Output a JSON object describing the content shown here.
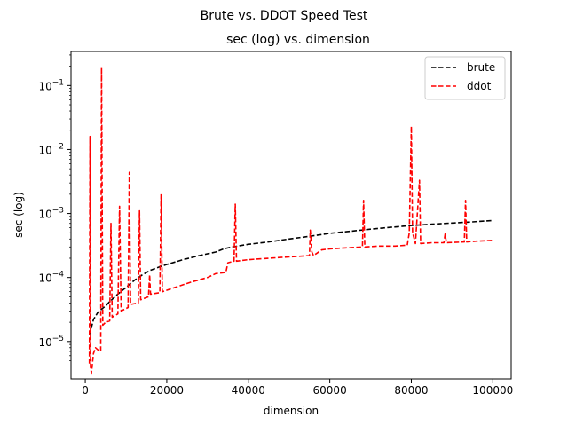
{
  "chart_data": {
    "type": "line",
    "suptitle": "Brute vs. DDOT Speed Test",
    "title": "sec (log) vs. dimension",
    "xlabel": "dimension",
    "ylabel": "sec (log)",
    "xlim": [
      -3500,
      104500
    ],
    "ylim": [
      2.6e-06,
      0.34
    ],
    "yscale": "log",
    "grid": false,
    "legend_position": "top-right",
    "x_ticks": [
      {
        "value": 0,
        "label": "0"
      },
      {
        "value": 20000,
        "label": "20000"
      },
      {
        "value": 40000,
        "label": "40000"
      },
      {
        "value": 60000,
        "label": "60000"
      },
      {
        "value": 80000,
        "label": "80000"
      },
      {
        "value": 100000,
        "label": "100000"
      }
    ],
    "y_ticks": [
      {
        "value": 1e-05,
        "mant": "10",
        "exp": "−5"
      },
      {
        "value": 0.0001,
        "mant": "10",
        "exp": "−4"
      },
      {
        "value": 0.001,
        "mant": "10",
        "exp": "−3"
      },
      {
        "value": 0.01,
        "mant": "10",
        "exp": "−2"
      },
      {
        "value": 0.1,
        "mant": "10",
        "exp": "−1"
      }
    ],
    "series": [
      {
        "name": "brute",
        "color": "#000000",
        "points": [
          [
            1000,
            1.25e-05
          ],
          [
            2000,
            2.2e-05
          ],
          [
            3000,
            2.8e-05
          ],
          [
            4000,
            3.2e-05
          ],
          [
            5000,
            3.6e-05
          ],
          [
            6000,
            4.2e-05
          ],
          [
            8000,
            5.5e-05
          ],
          [
            10000,
            7e-05
          ],
          [
            12000,
            9e-05
          ],
          [
            14000,
            0.00011
          ],
          [
            16000,
            0.00013
          ],
          [
            18000,
            0.000145
          ],
          [
            20000,
            0.00016
          ],
          [
            24000,
            0.00019
          ],
          [
            28000,
            0.00022
          ],
          [
            32000,
            0.00025
          ],
          [
            34000,
            0.00028
          ],
          [
            36000,
            0.0003
          ],
          [
            40000,
            0.00033
          ],
          [
            45000,
            0.00036
          ],
          [
            50000,
            0.0004
          ],
          [
            55000,
            0.00044
          ],
          [
            60000,
            0.00049
          ],
          [
            64000,
            0.00052
          ],
          [
            70000,
            0.00057
          ],
          [
            75000,
            0.00061
          ],
          [
            80000,
            0.00065
          ],
          [
            85000,
            0.00068
          ],
          [
            90000,
            0.00071
          ],
          [
            95000,
            0.00074
          ],
          [
            100000,
            0.00078
          ]
        ]
      },
      {
        "name": "ddot",
        "color": "#ff0000",
        "points": [
          [
            1000,
            4.5e-06
          ],
          [
            1150,
            0.016
          ],
          [
            1300,
            4e-06
          ],
          [
            1500,
            3.2e-06
          ],
          [
            2000,
            6.5e-06
          ],
          [
            2500,
            8e-06
          ],
          [
            3000,
            7.5e-06
          ],
          [
            3500,
            7e-06
          ],
          [
            3800,
            7e-06
          ],
          [
            4000,
            0.19
          ],
          [
            4300,
            1.8e-05
          ],
          [
            5000,
            2e-05
          ],
          [
            6000,
            2.1e-05
          ],
          [
            6300,
            0.0007
          ],
          [
            6600,
            2.4e-05
          ],
          [
            8000,
            2.7e-05
          ],
          [
            8400,
            0.0013
          ],
          [
            8800,
            3e-05
          ],
          [
            10500,
            3.4e-05
          ],
          [
            10800,
            0.0044
          ],
          [
            11100,
            3.8e-05
          ],
          [
            13000,
            4e-05
          ],
          [
            13300,
            0.0011
          ],
          [
            13600,
            4.5e-05
          ],
          [
            15500,
            5e-05
          ],
          [
            15800,
            0.00011
          ],
          [
            16000,
            5.5e-05
          ],
          [
            18300,
            5.8e-05
          ],
          [
            18600,
            0.002
          ],
          [
            18900,
            6e-05
          ],
          [
            22000,
            7e-05
          ],
          [
            26000,
            8.5e-05
          ],
          [
            30000,
            0.0001
          ],
          [
            32000,
            0.000115
          ],
          [
            34500,
            0.00012
          ],
          [
            35000,
            0.00017
          ],
          [
            36500,
            0.00018
          ],
          [
            36800,
            0.0014
          ],
          [
            37100,
            0.00018
          ],
          [
            40000,
            0.00019
          ],
          [
            45000,
            0.0002
          ],
          [
            50000,
            0.00021
          ],
          [
            55000,
            0.00022
          ],
          [
            55200,
            0.00055
          ],
          [
            55600,
            0.00025
          ],
          [
            56000,
            0.00022
          ],
          [
            58000,
            0.00027
          ],
          [
            60000,
            0.00028
          ],
          [
            64000,
            0.00029
          ],
          [
            68000,
            0.0003
          ],
          [
            68300,
            0.0016
          ],
          [
            68600,
            0.0003
          ],
          [
            72000,
            0.00031
          ],
          [
            76000,
            0.00031
          ],
          [
            79000,
            0.00032
          ],
          [
            79500,
            0.0005
          ],
          [
            80000,
            0.023
          ],
          [
            80300,
            0.0005
          ],
          [
            81000,
            0.00034
          ],
          [
            82000,
            0.0033
          ],
          [
            82300,
            0.00034
          ],
          [
            85000,
            0.00035
          ],
          [
            88000,
            0.00035
          ],
          [
            88300,
            0.00048
          ],
          [
            88600,
            0.00035
          ],
          [
            93000,
            0.00036
          ],
          [
            93300,
            0.0016
          ],
          [
            93600,
            0.00036
          ],
          [
            96000,
            0.00037
          ],
          [
            100000,
            0.00038
          ]
        ]
      }
    ]
  }
}
